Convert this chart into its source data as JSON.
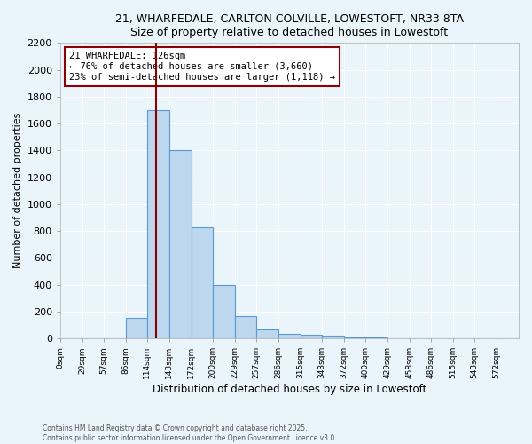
{
  "title_line1": "21, WHARFEDALE, CARLTON COLVILLE, LOWESTOFT, NR33 8TA",
  "title_line2": "Size of property relative to detached houses in Lowestoft",
  "xlabel": "Distribution of detached houses by size in Lowestoft",
  "ylabel": "Number of detached properties",
  "bin_labels": [
    "0sqm",
    "29sqm",
    "57sqm",
    "86sqm",
    "114sqm",
    "143sqm",
    "172sqm",
    "200sqm",
    "229sqm",
    "257sqm",
    "286sqm",
    "315sqm",
    "343sqm",
    "372sqm",
    "400sqm",
    "429sqm",
    "458sqm",
    "486sqm",
    "515sqm",
    "543sqm",
    "572sqm"
  ],
  "bin_edges": [
    0,
    29,
    57,
    86,
    114,
    143,
    172,
    200,
    229,
    257,
    286,
    315,
    343,
    372,
    400,
    429,
    458,
    486,
    515,
    543,
    572,
    601
  ],
  "bar_heights": [
    0,
    0,
    0,
    150,
    1700,
    1400,
    830,
    400,
    165,
    65,
    35,
    25,
    20,
    10,
    5,
    0,
    0,
    0,
    0,
    0,
    0
  ],
  "bar_color": "#BDD7EE",
  "bar_edge_color": "#5B9BD5",
  "vline_x": 126,
  "vline_color": "#8B0000",
  "annotation_text": "21 WHARFEDALE: 126sqm\n← 76% of detached houses are smaller (3,660)\n23% of semi-detached houses are larger (1,118) →",
  "annotation_box_color": "white",
  "annotation_box_edge": "#8B0000",
  "ylim": [
    0,
    2200
  ],
  "yticks": [
    0,
    200,
    400,
    600,
    800,
    1000,
    1200,
    1400,
    1600,
    1800,
    2000,
    2200
  ],
  "footer_line1": "Contains HM Land Registry data © Crown copyright and database right 2025.",
  "footer_line2": "Contains public sector information licensed under the Open Government Licence v3.0.",
  "background_color": "#EAF4FB",
  "plot_background": "#EAF4FB",
  "grid_color": "white",
  "tick_label_fontsize": 6.5,
  "title_fontsize": 9,
  "xlabel_fontsize": 8.5,
  "ylabel_fontsize": 8
}
